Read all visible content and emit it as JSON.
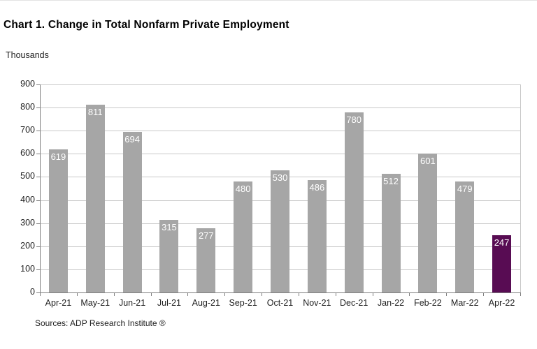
{
  "page": {
    "title": "Chart 1. Change in Total Nonfarm Private Employment",
    "units_label": "Thousands",
    "source": "Sources: ADP Research Institute ®"
  },
  "chart_data": {
    "type": "bar",
    "title": "Chart 1. Change in Total Nonfarm Private Employment",
    "ylabel": "Thousands",
    "xlabel": "",
    "categories": [
      "Apr-21",
      "May-21",
      "Jun-21",
      "Jul-21",
      "Aug-21",
      "Sep-21",
      "Oct-21",
      "Nov-21",
      "Dec-21",
      "Jan-22",
      "Feb-22",
      "Mar-22",
      "Apr-22"
    ],
    "values": [
      619,
      811,
      694,
      315,
      277,
      480,
      530,
      486,
      780,
      512,
      601,
      479,
      247
    ],
    "ylim": [
      0,
      900
    ],
    "ytick_step": 100,
    "grid": true,
    "legend": "none",
    "value_labels_position": "inside-top",
    "highlight_index": 12,
    "source": "Sources: ADP Research Institute ®",
    "colors": {
      "bar": "#a6a6a6",
      "highlight": "#580c53",
      "value_label": "#ffffff",
      "gridline": "#c8c8c8",
      "plot_border": "#c8c8c8",
      "axis": "#7f7f7f",
      "text": "#1f1f1f",
      "title": "#000000",
      "background": "#ffffff"
    }
  }
}
